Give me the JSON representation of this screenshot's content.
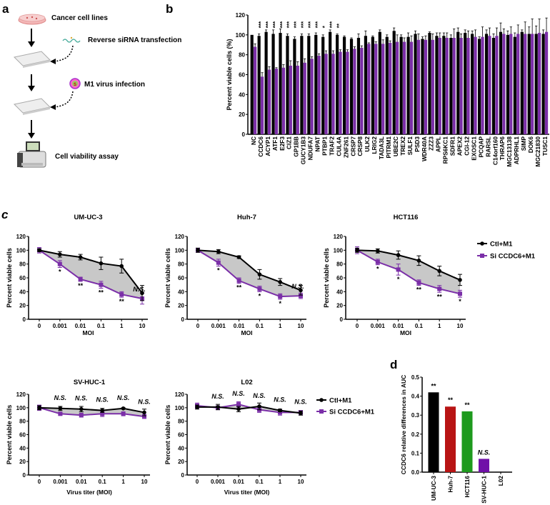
{
  "panel_labels": {
    "a": "a",
    "b": "b",
    "c": "c",
    "d": "d"
  },
  "panel_a": {
    "steps": [
      "Cancer cell lines",
      "Reverse siRNA transfection",
      "M1 virus infection",
      "Cell viability assay"
    ],
    "icons": [
      "petri-dish-icon",
      "sirna-icon",
      "well-plate-icon",
      "virus-icon",
      "plate-reader-icon"
    ]
  },
  "colors": {
    "control": "#000000",
    "si": "#7b2fa8",
    "shade": "#c8c8c8",
    "auc": [
      "#000000",
      "#b81414",
      "#1e9a1e",
      "#7010a8",
      "#000000"
    ]
  },
  "chart_data": [
    {
      "type": "bar",
      "panel": "b",
      "ylabel": "Percent viable cells (%)",
      "ylim": [
        0,
        120
      ],
      "yticks": [
        0,
        20,
        40,
        60,
        80,
        100,
        120
      ],
      "categories": [
        "NC",
        "CCDC6",
        "ACYP1",
        "ATF1",
        "E2F3",
        "CIZ1",
        "GP1BB",
        "GUCY1B3",
        "NDUFA7",
        "NPAT",
        "PTBP1",
        "TRAF2",
        "CUL4A",
        "ZNF261",
        "CRSP7",
        "CRSP8",
        "ULK2",
        "LRIG2",
        "TADA3L",
        "PITRM1",
        "UBE2C",
        "TREX2",
        "SULF1",
        "PSD3",
        "WDR40A",
        "ZZZ3",
        "APPL",
        "RPS6KC1",
        "SDFR1",
        "APEX2",
        "CGI-12",
        "EXOSC1",
        "PCQAP",
        "RARSL",
        "C14orf160",
        "THRAP6",
        "MGC13138",
        "ADPRHL1",
        "SIMP",
        "DOK6",
        "MGC21830",
        "TUSC1"
      ],
      "series": [
        {
          "values": [
            100,
            99,
            103,
            101,
            102,
            99,
            96,
            99,
            99,
            100,
            98,
            103,
            100,
            98,
            96,
            97,
            99,
            98,
            103,
            98,
            104,
            98,
            98,
            101,
            96,
            102,
            99,
            99,
            97,
            103,
            102,
            101,
            96,
            101,
            97,
            103,
            100,
            98,
            103,
            101,
            101,
            101
          ],
          "errors": [
            0,
            2,
            2,
            4,
            4,
            2,
            2,
            2,
            2,
            2,
            2,
            2,
            1,
            1,
            1,
            4,
            5,
            1,
            2,
            2,
            3,
            2,
            4,
            3,
            2,
            1,
            3,
            3,
            3,
            4,
            3,
            3,
            2,
            4,
            4,
            9,
            4,
            4,
            2,
            7,
            8,
            4
          ]
        },
        {
          "values": [
            88,
            58,
            65,
            66,
            67,
            69,
            69,
            72,
            76,
            79,
            81,
            81,
            83,
            83,
            86,
            87,
            91,
            91,
            91,
            92,
            93,
            93,
            93,
            95,
            95,
            95,
            97,
            97,
            97,
            97,
            97,
            98,
            98,
            99,
            99,
            101,
            101,
            101,
            101,
            101,
            102,
            103
          ],
          "errors": [
            3,
            4,
            3,
            1,
            3,
            5,
            4,
            4,
            2,
            2,
            3,
            3,
            2,
            2,
            2,
            2,
            1,
            2,
            4,
            2,
            7,
            4,
            6,
            6,
            4,
            6,
            5,
            5,
            9,
            4,
            7,
            7,
            10,
            8,
            8,
            5,
            7,
            9,
            12,
            15,
            14,
            14
          ]
        }
      ],
      "significance": [
        "",
        "***",
        "***",
        "***",
        "***",
        "***",
        "***",
        "***",
        "***",
        "***",
        "*",
        "***",
        "**",
        "",
        "",
        "",
        "",
        "",
        "",
        "",
        "",
        "",
        "",
        "",
        "",
        "",
        "",
        "",
        "",
        "",
        "",
        "",
        "",
        "",
        "",
        "",
        "",
        "",
        "",
        "",
        "",
        ""
      ]
    },
    {
      "type": "line",
      "panel": "c",
      "title": "UM-UC-3",
      "xlabel": "MOI",
      "ylabel": "Percent viable cells",
      "ylim": [
        0,
        120
      ],
      "yticks": [
        0,
        20,
        40,
        60,
        80,
        100,
        120
      ],
      "categories": [
        "0",
        "0.001",
        "0.01",
        "0.1",
        "1",
        "10"
      ],
      "series": [
        {
          "name": "Ctl+M1",
          "values": [
            100,
            94,
            90,
            81,
            77,
            38
          ],
          "errors": [
            2,
            4,
            4,
            9,
            10,
            11
          ]
        },
        {
          "name": "Si CCDC6+M1",
          "values": [
            100,
            80,
            58,
            50,
            36,
            30
          ],
          "errors": [
            4,
            5,
            3,
            5,
            4,
            8
          ]
        }
      ],
      "significance": [
        "",
        "*",
        "**",
        "**",
        "**",
        "N.S."
      ]
    },
    {
      "type": "line",
      "panel": "c",
      "title": "Huh-7",
      "xlabel": "MOI",
      "ylabel": "Percent viable cells",
      "ylim": [
        0,
        120
      ],
      "yticks": [
        0,
        20,
        40,
        60,
        80,
        100,
        120
      ],
      "categories": [
        "0",
        "0.001",
        "0.01",
        "0.1",
        "1",
        "10"
      ],
      "series": [
        {
          "name": "Ctl+M1",
          "values": [
            100,
            98,
            90,
            65,
            54,
            42
          ],
          "errors": [
            3,
            3,
            2,
            7,
            5,
            7
          ]
        },
        {
          "name": "Si CCDC6+M1",
          "values": [
            100,
            82,
            56,
            44,
            33,
            34
          ],
          "errors": [
            3,
            5,
            4,
            4,
            4,
            4
          ]
        }
      ],
      "significance": [
        "",
        "*",
        "**",
        "*",
        "*",
        "N.S."
      ]
    },
    {
      "type": "line",
      "panel": "c",
      "title": "HCT116",
      "xlabel": "MOI",
      "ylabel": "Percent viable cells",
      "ylim": [
        0,
        120
      ],
      "yticks": [
        0,
        20,
        40,
        60,
        80,
        100,
        120
      ],
      "categories": [
        "0",
        "0.001",
        "0.01",
        "0.1",
        "1",
        "10"
      ],
      "series": [
        {
          "name": "Ctl+M1",
          "values": [
            100,
            99,
            93,
            85,
            70,
            57
          ],
          "errors": [
            3,
            3,
            6,
            7,
            7,
            8
          ]
        },
        {
          "name": "Si CCDC6+M1",
          "values": [
            100,
            83,
            72,
            53,
            44,
            37
          ],
          "errors": [
            5,
            4,
            8,
            4,
            5,
            5
          ]
        }
      ],
      "significance": [
        "",
        "*",
        "*",
        "**",
        "**",
        "*"
      ],
      "legend": "right"
    },
    {
      "type": "line",
      "panel": "c",
      "title": "SV-HUC-1",
      "xlabel": "Virus titer (MOI)",
      "ylabel": "Percent viable cells",
      "ylim": [
        0,
        120
      ],
      "yticks": [
        0,
        20,
        40,
        60,
        80,
        100,
        120
      ],
      "categories": [
        "0",
        "0.001",
        "0.01",
        "0.1",
        "1",
        "10"
      ],
      "series": [
        {
          "name": "Ctl+M1",
          "values": [
            100,
            99,
            98,
            96,
            99,
            93
          ],
          "errors": [
            3,
            3,
            4,
            3,
            1,
            5
          ]
        },
        {
          "name": "Si CCDC6+M1",
          "values": [
            100,
            91,
            89,
            91,
            91,
            87
          ],
          "errors": [
            4,
            2,
            3,
            4,
            3,
            3
          ]
        }
      ],
      "significance": [
        "",
        "N.S.",
        "N.S.",
        "N.S.",
        "N.S.",
        "N.S."
      ]
    },
    {
      "type": "line",
      "panel": "c",
      "title": "L02",
      "xlabel": "Virus titer (MOI)",
      "ylabel": "Percent viable cells",
      "ylim": [
        0,
        120
      ],
      "yticks": [
        0,
        20,
        40,
        60,
        80,
        100,
        120
      ],
      "categories": [
        "0",
        "0.001",
        "0.01",
        "0.1",
        "1",
        "10"
      ],
      "series": [
        {
          "name": "Ctl+M1",
          "values": [
            101,
            101,
            98,
            102,
            96,
            92
          ],
          "errors": [
            3,
            4,
            4,
            5,
            2,
            3
          ]
        },
        {
          "name": "Si CCDC6+M1",
          "values": [
            103,
            100,
            105,
            97,
            93,
            93
          ],
          "errors": [
            4,
            3,
            4,
            4,
            4,
            3
          ]
        }
      ],
      "significance": [
        "",
        "N.S.",
        "N.S.",
        "N.S.",
        "N.S.",
        "N.S."
      ],
      "legend": "right"
    },
    {
      "type": "bar",
      "panel": "d",
      "ylabel": "CCDC6 relative differences in AUC",
      "ylim": [
        0,
        0.5
      ],
      "yticks": [
        "0.0",
        "0.1",
        "0.2",
        "0.3",
        "0.4",
        "0.5"
      ],
      "categories": [
        "UM-UC-3",
        "Huh-7",
        "HCT116",
        "SV-HUC-1",
        "L02"
      ],
      "values": [
        0.42,
        0.345,
        0.32,
        0.07,
        0.002
      ],
      "significance": [
        "**",
        "**",
        "**",
        "N.S.",
        ""
      ]
    }
  ]
}
